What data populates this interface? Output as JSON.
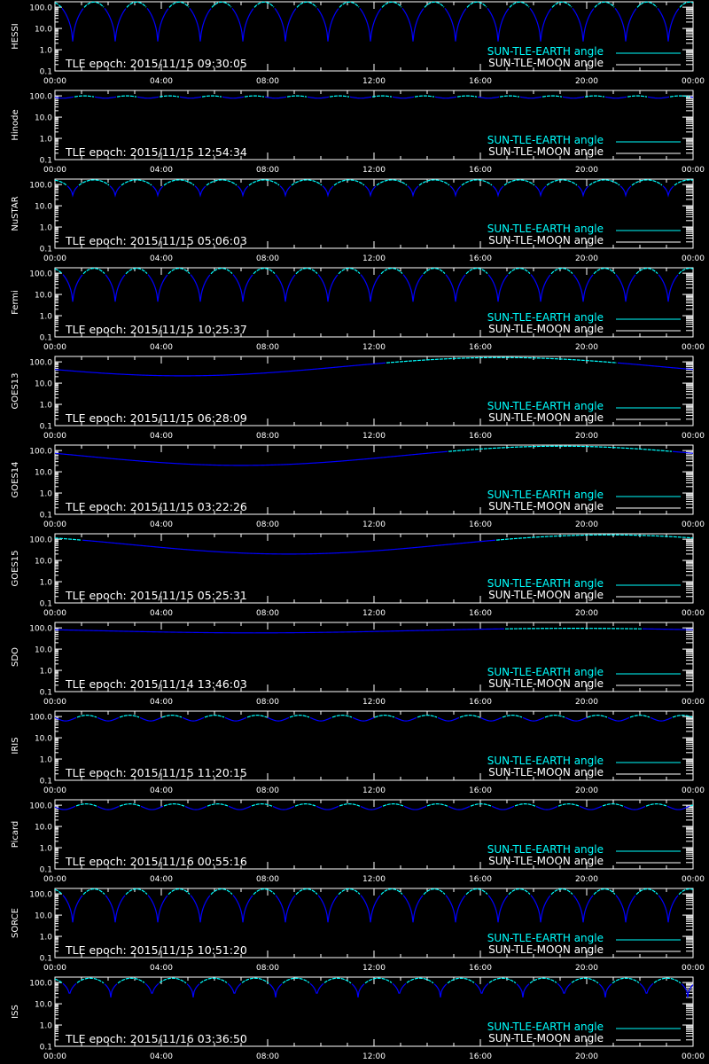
{
  "colors": {
    "earth": "#00ffff",
    "moon": "#ffffff",
    "curve_low": "#0000ff",
    "curve_high": "#00ffff",
    "axis": "#ffffff",
    "background": "#000000"
  },
  "common": {
    "x_tick_labels": [
      "00:00",
      "04:00",
      "08:00",
      "12:00",
      "16:00",
      "20:00",
      "00:00"
    ],
    "y_tick_labels": [
      "100.0",
      "10.0",
      "1.0",
      "0.1"
    ],
    "legend_earth": "SUN-TLE-EARTH angle",
    "legend_moon": "SUN-TLE-MOON angle"
  },
  "chart_data": [
    {
      "type": "line",
      "scale": "log",
      "satellite": "HESSI",
      "epoch_text": "TLE epoch: 2015/11/15 09:30:05",
      "xlim": [
        0,
        24
      ],
      "ylim": [
        0.1,
        180
      ],
      "model": {
        "period_h": 1.6,
        "phase_h": 0.67,
        "min_deg": 1.5,
        "max_deg": 175,
        "shape": "orbit"
      }
    },
    {
      "type": "line",
      "scale": "log",
      "satellite": "Hinode",
      "epoch_text": "TLE epoch: 2015/11/15 12:54:34",
      "xlim": [
        0,
        24
      ],
      "ylim": [
        0.1,
        180
      ],
      "model": {
        "period_h": 1.6,
        "phase_h": 0.3,
        "min_deg": 78,
        "max_deg": 100,
        "shape": "sine"
      }
    },
    {
      "type": "line",
      "scale": "log",
      "satellite": "NuSTAR",
      "epoch_text": "TLE epoch: 2015/11/15 05:06:03",
      "xlim": [
        0,
        24
      ],
      "ylim": [
        0.1,
        180
      ],
      "model": {
        "period_h": 1.6,
        "phase_h": 0.67,
        "min_deg": 25,
        "max_deg": 165,
        "shape": "orbit"
      }
    },
    {
      "type": "line",
      "scale": "log",
      "satellite": "Fermi",
      "epoch_text": "TLE epoch: 2015/11/15 10:25:37",
      "xlim": [
        0,
        24
      ],
      "ylim": [
        0.1,
        180
      ],
      "model": {
        "period_h": 1.6,
        "phase_h": 0.67,
        "min_deg": 3,
        "max_deg": 170,
        "shape": "orbit"
      }
    },
    {
      "type": "line",
      "scale": "log",
      "satellite": "GOES13",
      "epoch_text": "TLE epoch: 2015/11/15 06:28:09",
      "xlim": [
        0,
        24
      ],
      "ylim": [
        0.1,
        180
      ],
      "model": {
        "period_h": 24,
        "phase_h": 4.8,
        "min_deg": 22,
        "max_deg": 160,
        "shape": "geo"
      }
    },
    {
      "type": "line",
      "scale": "log",
      "satellite": "GOES14",
      "epoch_text": "TLE epoch: 2015/11/15 03:22:26",
      "xlim": [
        0,
        24
      ],
      "ylim": [
        0.1,
        180
      ],
      "model": {
        "period_h": 24,
        "phase_h": 7.0,
        "min_deg": 20,
        "max_deg": 160,
        "shape": "geo"
      }
    },
    {
      "type": "line",
      "scale": "log",
      "satellite": "GOES15",
      "epoch_text": "TLE epoch: 2015/11/15 05:25:31",
      "xlim": [
        0,
        24
      ],
      "ylim": [
        0.1,
        180
      ],
      "model": {
        "period_h": 24,
        "phase_h": 8.8,
        "min_deg": 20,
        "max_deg": 160,
        "shape": "geo"
      }
    },
    {
      "type": "line",
      "scale": "log",
      "satellite": "SDO",
      "epoch_text": "TLE epoch: 2015/11/14 13:46:03",
      "xlim": [
        0,
        24
      ],
      "ylim": [
        0.1,
        180
      ],
      "model": {
        "period_h": 24,
        "phase_h": 7.5,
        "min_deg": 58,
        "max_deg": 95,
        "shape": "geo"
      }
    },
    {
      "type": "line",
      "scale": "log",
      "satellite": "IRIS",
      "epoch_text": "TLE epoch: 2015/11/15 11:20:15",
      "xlim": [
        0,
        24
      ],
      "ylim": [
        0.1,
        180
      ],
      "model": {
        "period_h": 1.6,
        "phase_h": 0.4,
        "min_deg": 62,
        "max_deg": 115,
        "shape": "sine"
      }
    },
    {
      "type": "line",
      "scale": "log",
      "satellite": "Picard",
      "epoch_text": "TLE epoch: 2015/11/16 00:55:16",
      "xlim": [
        0,
        24
      ],
      "ylim": [
        0.1,
        180
      ],
      "model": {
        "period_h": 1.65,
        "phase_h": 0.35,
        "min_deg": 62,
        "max_deg": 115,
        "shape": "sine"
      }
    },
    {
      "type": "line",
      "scale": "log",
      "satellite": "SORCE",
      "epoch_text": "TLE epoch: 2015/11/15 10:51:20",
      "xlim": [
        0,
        24
      ],
      "ylim": [
        0.1,
        180
      ],
      "model": {
        "period_h": 1.6,
        "phase_h": 0.67,
        "min_deg": 3,
        "max_deg": 170,
        "shape": "orbit"
      }
    },
    {
      "type": "line",
      "scale": "log",
      "satellite": "ISS",
      "epoch_text": "TLE epoch: 2015/11/16 03:36:50",
      "xlim": [
        0,
        24
      ],
      "ylim": [
        0.1,
        180
      ],
      "model": {
        "period_h": 1.55,
        "phase_h": 0.55,
        "min_deg": 20,
        "max_deg": 160,
        "shape": "orbit"
      }
    }
  ]
}
